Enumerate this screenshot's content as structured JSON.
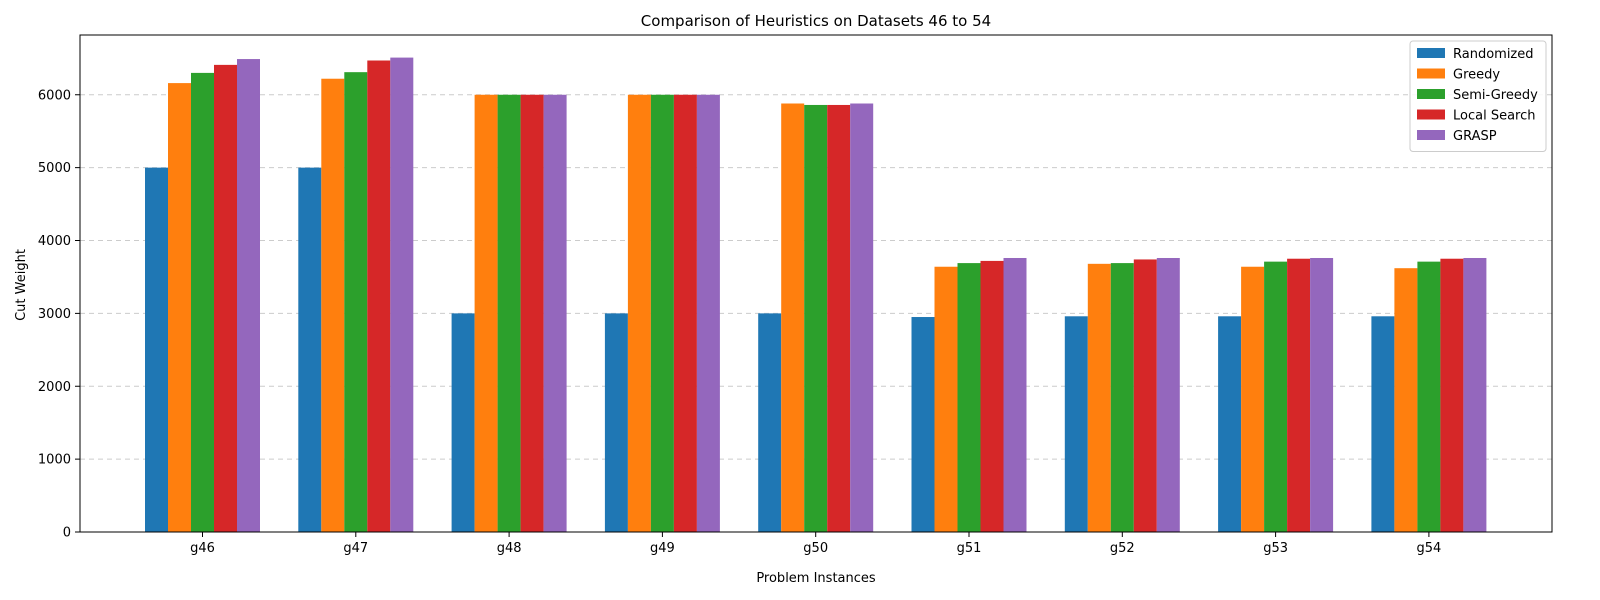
{
  "chart_data": {
    "type": "bar",
    "title": "Comparison of Heuristics on Datasets 46 to 54",
    "xlabel": "Problem Instances",
    "ylabel": "Cut Weight",
    "categories": [
      "g46",
      "g47",
      "g48",
      "g49",
      "g50",
      "g51",
      "g52",
      "g53",
      "g54"
    ],
    "ylim": [
      0,
      6820
    ],
    "yticks": [
      0,
      1000,
      2000,
      3000,
      4000,
      5000,
      6000
    ],
    "grid": "horizontal dashed",
    "legend_position": "top-right",
    "series": [
      {
        "name": "Randomized",
        "color": "#1f77b4",
        "values": [
          5000,
          5000,
          3000,
          3000,
          3000,
          2950,
          2960,
          2960,
          2960
        ]
      },
      {
        "name": "Greedy",
        "color": "#ff7f0e",
        "values": [
          6160,
          6220,
          6000,
          6000,
          5880,
          3640,
          3680,
          3640,
          3620
        ]
      },
      {
        "name": "Semi-Greedy",
        "color": "#2ca02c",
        "values": [
          6300,
          6310,
          6000,
          6000,
          5860,
          3690,
          3690,
          3710,
          3710
        ]
      },
      {
        "name": "Local Search",
        "color": "#d62728",
        "values": [
          6410,
          6470,
          6000,
          6000,
          5860,
          3720,
          3740,
          3750,
          3750
        ]
      },
      {
        "name": "GRASP",
        "color": "#9467bd",
        "values": [
          6490,
          6510,
          6000,
          6000,
          5880,
          3760,
          3760,
          3760,
          3760
        ]
      }
    ]
  }
}
